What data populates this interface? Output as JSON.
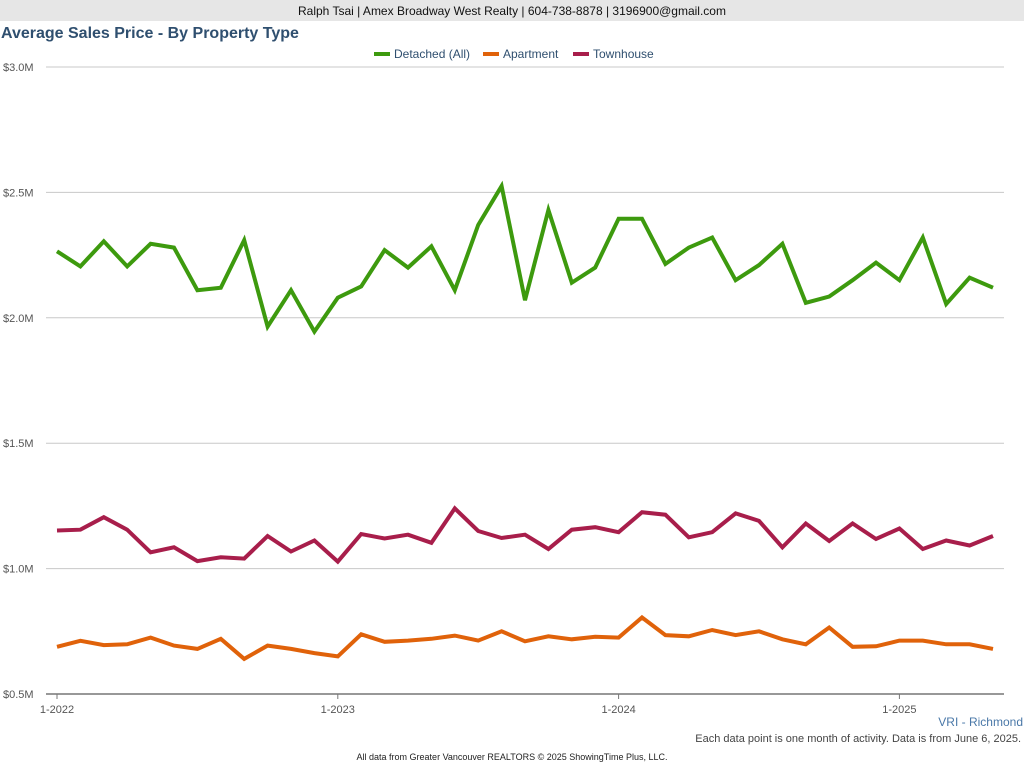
{
  "header": {
    "contact": "Ralph Tsai | Amex Broadway West Realty | 604-738-8878 | 3196900@gmail.com"
  },
  "chart_data": {
    "type": "line",
    "title": "Average Sales Price - By Property Type",
    "xlabel": "",
    "ylabel": "",
    "ylim": [
      500000,
      3000000
    ],
    "yticks": [
      500000,
      1000000,
      1500000,
      2000000,
      2500000,
      3000000
    ],
    "ytick_labels": [
      "$0.5M",
      "$1.0M",
      "$1.5M",
      "$2.0M",
      "$2.5M",
      "$3.0M"
    ],
    "xticks": [
      "2022-01",
      "2023-01",
      "2024-01",
      "2025-01"
    ],
    "xtick_labels": [
      "1-2022",
      "1-2023",
      "1-2024",
      "1-2025"
    ],
    "grid": true,
    "legend": "top-center",
    "x": [
      "2022-01",
      "2022-02",
      "2022-03",
      "2022-04",
      "2022-05",
      "2022-06",
      "2022-07",
      "2022-08",
      "2022-09",
      "2022-10",
      "2022-11",
      "2022-12",
      "2023-01",
      "2023-02",
      "2023-03",
      "2023-04",
      "2023-05",
      "2023-06",
      "2023-07",
      "2023-08",
      "2023-09",
      "2023-10",
      "2023-11",
      "2023-12",
      "2024-01",
      "2024-02",
      "2024-03",
      "2024-04",
      "2024-05",
      "2024-06",
      "2024-07",
      "2024-08",
      "2024-09",
      "2024-10",
      "2024-11",
      "2024-12",
      "2025-01",
      "2025-02",
      "2025-03",
      "2025-04",
      "2025-05"
    ],
    "series": [
      {
        "name": "Detached (All)",
        "color": "#3d9a0e",
        "values": [
          2265000,
          2205000,
          2305000,
          2205000,
          2295000,
          2280000,
          2110000,
          2120000,
          2310000,
          1965000,
          2110000,
          1945000,
          2080000,
          2125000,
          2270000,
          2200000,
          2285000,
          2110000,
          2370000,
          2525000,
          2070000,
          2430000,
          2140000,
          2200000,
          2395000,
          2395000,
          2215000,
          2280000,
          2320000,
          2150000,
          2210000,
          2295000,
          2060000,
          2085000,
          2150000,
          2220000,
          2150000,
          2320000,
          2055000,
          2160000,
          2120000
        ]
      },
      {
        "name": "Apartment",
        "color": "#e0620a",
        "values": [
          688000,
          712000,
          695000,
          698000,
          725000,
          693000,
          680000,
          720000,
          640000,
          693000,
          680000,
          663000,
          650000,
          738000,
          708000,
          713000,
          720000,
          733000,
          713000,
          750000,
          710000,
          730000,
          718000,
          728000,
          725000,
          805000,
          735000,
          730000,
          755000,
          735000,
          750000,
          718000,
          698000,
          765000,
          688000,
          690000,
          713000,
          713000,
          698000,
          698000,
          680000
        ]
      },
      {
        "name": "Townhouse",
        "color": "#a81e4b",
        "values": [
          1152000,
          1155000,
          1205000,
          1155000,
          1065000,
          1085000,
          1030000,
          1045000,
          1040000,
          1130000,
          1068000,
          1112000,
          1028000,
          1138000,
          1120000,
          1135000,
          1103000,
          1240000,
          1150000,
          1122000,
          1135000,
          1078000,
          1155000,
          1165000,
          1145000,
          1225000,
          1215000,
          1125000,
          1145000,
          1220000,
          1190000,
          1085000,
          1180000,
          1110000,
          1180000,
          1118000,
          1160000,
          1078000,
          1112000,
          1092000,
          1130000
        ]
      }
    ]
  },
  "region_label": "VRI - Richmond",
  "note": "Each data point is one month of activity. Data is from June 6, 2025.",
  "footer": "All data from Greater Vancouver REALTORS © 2025 ShowingTime Plus, LLC."
}
